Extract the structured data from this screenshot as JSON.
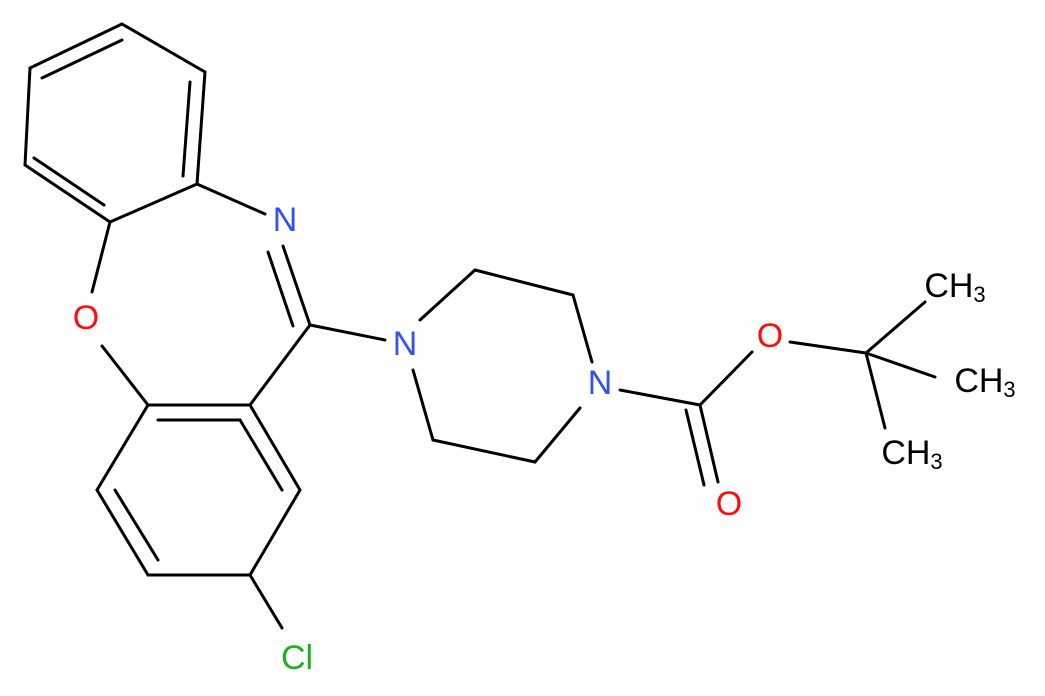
{
  "atoms": [
    {
      "main": "N"
    },
    {
      "main": "O"
    },
    {
      "main": "N"
    },
    {
      "main": "N"
    },
    {
      "main": "O"
    },
    {
      "main": "O"
    },
    {
      "main": "Cl"
    },
    {
      "main": "CH",
      "sub": "3"
    },
    {
      "main": "CH",
      "sub": "3"
    },
    {
      "main": "CH",
      "sub": "3"
    }
  ]
}
